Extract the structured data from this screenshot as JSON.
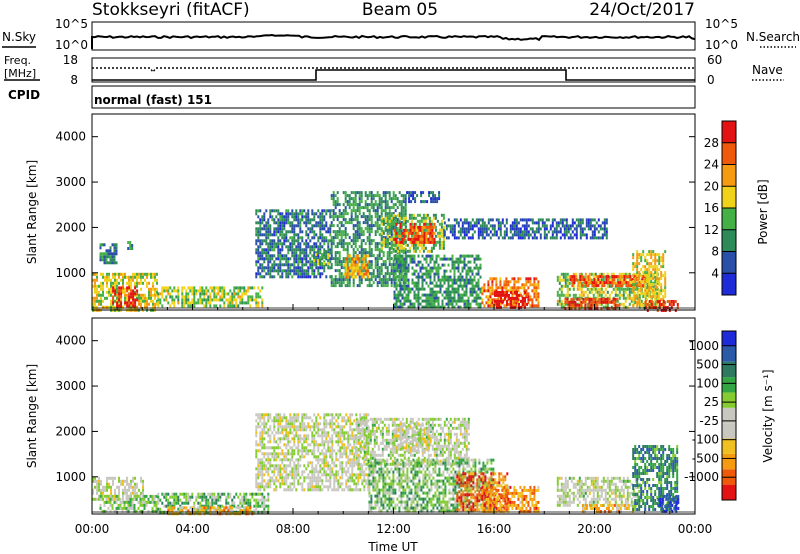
{
  "header": {
    "station": "Stokkseyri (fitACF)",
    "beam": "Beam 05",
    "date": "24/Oct/2017"
  },
  "noise_panel": {
    "left_label": "N.Sky",
    "right_label": "N.Search",
    "left_ticks": [
      "10^5",
      "10^0"
    ],
    "right_ticks": [
      "10^5",
      "10^0"
    ]
  },
  "freq_panel": {
    "left_label_1": "Freq.",
    "left_label_2": "[MHz]",
    "right_label": "Nave",
    "left_ticks": [
      "18",
      "8"
    ],
    "right_ticks": [
      "60",
      "0"
    ]
  },
  "cpid": {
    "label": "CPID",
    "value": "normal (fast) 151"
  },
  "colors": {
    "power": [
      "#1f2bd9",
      "#2a4fa8",
      "#2f8a5a",
      "#45b045",
      "#f0d21a",
      "#f59b12",
      "#ee5a0a",
      "#e31313"
    ],
    "velocity": [
      "#e31313",
      "#ee5a0a",
      "#f59b12",
      "#f0c020",
      "#c8c8c0",
      "#c8c8c0",
      "#85cc33",
      "#33a545",
      "#2e7a60",
      "#2a5aa8",
      "#1f2bd9"
    ]
  },
  "chart_data": [
    {
      "type": "heatmap",
      "panel": "power",
      "ylabel": "Slant Range [km]",
      "xlabel": "Time UT",
      "x_ticks": [
        "00:00",
        "04:00",
        "08:00",
        "12:00",
        "16:00",
        "20:00",
        "00:00"
      ],
      "xlim_hours": [
        0,
        24
      ],
      "ylim_km": [
        180,
        4500
      ],
      "y_ticks": [
        1000,
        2000,
        3000,
        4000
      ],
      "colorbar": {
        "label": "Power [dB]",
        "ticks": [
          "4",
          "8",
          "12",
          "16",
          "20",
          "24",
          "28"
        ],
        "range": [
          0,
          32
        ]
      },
      "regions": [
        {
          "t": [
            0.0,
            2.6
          ],
          "r": [
            200,
            1000
          ],
          "level": 0.55
        },
        {
          "t": [
            0.8,
            1.8
          ],
          "r": [
            250,
            700
          ],
          "level": 0.95
        },
        {
          "t": [
            0.3,
            1.0
          ],
          "r": [
            1200,
            1650
          ],
          "level": 0.3
        },
        {
          "t": [
            1.4,
            1.6
          ],
          "r": [
            1550,
            1700
          ],
          "level": 0.35
        },
        {
          "t": [
            2.6,
            6.8
          ],
          "r": [
            250,
            700
          ],
          "level": 0.5
        },
        {
          "t": [
            6.5,
            9.5
          ],
          "r": [
            900,
            2400
          ],
          "level": 0.25
        },
        {
          "t": [
            8.8,
            9.4
          ],
          "r": [
            1200,
            1500
          ],
          "level": 0.45
        },
        {
          "t": [
            9.5,
            12.5
          ],
          "r": [
            700,
            2800
          ],
          "level": 0.35
        },
        {
          "t": [
            10.0,
            11.0
          ],
          "r": [
            900,
            1400
          ],
          "level": 0.65
        },
        {
          "t": [
            11.5,
            14.0
          ],
          "r": [
            1500,
            2300
          ],
          "level": 0.45
        },
        {
          "t": [
            12.0,
            13.6
          ],
          "r": [
            1700,
            2100
          ],
          "level": 0.85
        },
        {
          "t": [
            12.5,
            13.8
          ],
          "r": [
            2600,
            2800
          ],
          "level": 0.2
        },
        {
          "t": [
            12.0,
            15.5
          ],
          "r": [
            250,
            1400
          ],
          "level": 0.35
        },
        {
          "t": [
            14.0,
            20.5
          ],
          "r": [
            1800,
            2200
          ],
          "level": 0.2
        },
        {
          "t": [
            15.5,
            17.8
          ],
          "r": [
            250,
            900
          ],
          "level": 0.75
        },
        {
          "t": [
            16.0,
            17.3
          ],
          "r": [
            250,
            600
          ],
          "level": 1.0
        },
        {
          "t": [
            18.5,
            22.5
          ],
          "r": [
            250,
            1000
          ],
          "level": 0.5
        },
        {
          "t": [
            19.0,
            22.0
          ],
          "r": [
            700,
            950
          ],
          "level": 0.85
        },
        {
          "t": [
            18.8,
            21.0
          ],
          "r": [
            250,
            450
          ],
          "level": 0.9
        },
        {
          "t": [
            21.5,
            22.8
          ],
          "r": [
            250,
            1500
          ],
          "level": 0.6
        },
        {
          "t": [
            22.0,
            23.3
          ],
          "r": [
            200,
            400
          ],
          "level": 0.9
        }
      ]
    },
    {
      "type": "heatmap",
      "panel": "velocity",
      "ylabel": "Slant Range [km]",
      "xlabel": "Time UT",
      "x_ticks": [
        "00:00",
        "04:00",
        "08:00",
        "12:00",
        "16:00",
        "20:00",
        "00:00"
      ],
      "xlim_hours": [
        0,
        24
      ],
      "ylim_km": [
        180,
        4500
      ],
      "y_ticks": [
        1000,
        2000,
        3000,
        4000
      ],
      "colorbar": {
        "label": "Velocity [m s⁻¹]",
        "ticks": [
          "-1000",
          "-500",
          "-100",
          "-25",
          "25",
          "100",
          "500",
          "1000"
        ]
      },
      "regions": [
        {
          "t": [
            0.0,
            2.0
          ],
          "r": [
            500,
            1000
          ],
          "level": 0.48
        },
        {
          "t": [
            0.3,
            2.6
          ],
          "r": [
            250,
            600
          ],
          "level": 0.58
        },
        {
          "t": [
            2.6,
            7.0
          ],
          "r": [
            250,
            650
          ],
          "level": 0.62
        },
        {
          "t": [
            3.0,
            6.5
          ],
          "r": [
            200,
            350
          ],
          "level": 0.3
        },
        {
          "t": [
            6.5,
            11.0
          ],
          "r": [
            700,
            2400
          ],
          "level": 0.48
        },
        {
          "t": [
            10.5,
            15.0
          ],
          "r": [
            1300,
            2300
          ],
          "level": 0.5
        },
        {
          "t": [
            12.0,
            13.5
          ],
          "r": [
            1600,
            2200
          ],
          "level": 0.45
        },
        {
          "t": [
            11.0,
            16.0
          ],
          "r": [
            250,
            1400
          ],
          "level": 0.6
        },
        {
          "t": [
            14.5,
            16.5
          ],
          "r": [
            300,
            1100
          ],
          "level": 0.15
        },
        {
          "t": [
            15.5,
            17.8
          ],
          "r": [
            250,
            800
          ],
          "level": 0.22
        },
        {
          "t": [
            18.5,
            21.8
          ],
          "r": [
            350,
            1000
          ],
          "level": 0.5
        },
        {
          "t": [
            19.5,
            21.5
          ],
          "r": [
            250,
            400
          ],
          "level": 0.3
        },
        {
          "t": [
            21.5,
            23.3
          ],
          "r": [
            250,
            1700
          ],
          "level": 0.75
        },
        {
          "t": [
            22.5,
            23.3
          ],
          "r": [
            250,
            600
          ],
          "level": 0.9
        }
      ]
    }
  ]
}
